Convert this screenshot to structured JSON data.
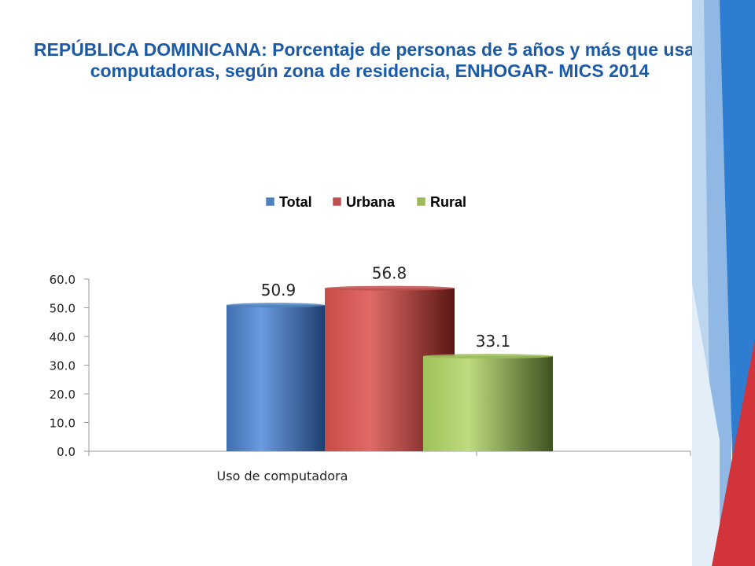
{
  "slide": {
    "title": "REPÚBLICA DOMINICANA: Porcentaje de personas de 5 años y más que usan computadoras, según zona de residencia, ENHOGAR- MICS 2014"
  },
  "chart_data": {
    "type": "bar",
    "categories": [
      "Uso de computadora"
    ],
    "series": [
      {
        "name": "Total",
        "values": [
          50.9
        ],
        "color": "#4f81bd"
      },
      {
        "name": "Urbana",
        "values": [
          56.8
        ],
        "color": "#c0504d"
      },
      {
        "name": "Rural",
        "values": [
          33.1
        ],
        "color": "#9bbb59"
      }
    ],
    "ylim": [
      0,
      60
    ],
    "yticks": [
      0,
      10,
      20,
      30,
      40,
      50,
      60
    ],
    "ytick_labels": [
      "0.0",
      "10.0",
      "20.0",
      "30.0",
      "40.0",
      "50.0",
      "60.0"
    ],
    "data_labels": [
      "50.9",
      "56.8",
      "33.1"
    ],
    "legend_position": "top",
    "grid": false,
    "xlabel": "",
    "ylabel": ""
  },
  "decoration": {
    "stripe_colors": [
      "#2e75c6",
      "#5b9bd5",
      "#9dc3e6",
      "#c9342f"
    ]
  }
}
